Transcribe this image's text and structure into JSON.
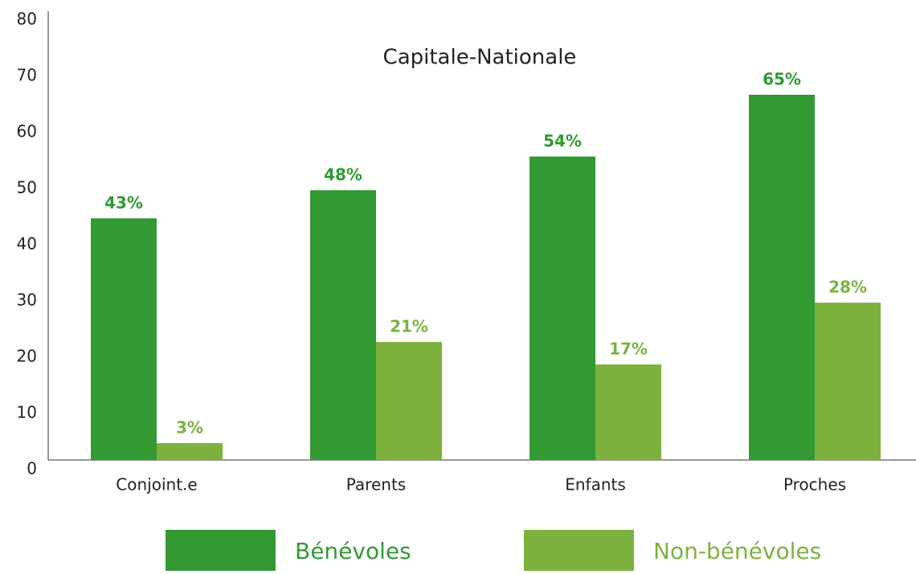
{
  "chart_data": {
    "type": "bar",
    "title": "Capitale-Nationale",
    "categories": [
      "Conjoint.e",
      "Parents",
      "Enfants",
      "Proches"
    ],
    "series": [
      {
        "name": "Bénévoles",
        "color": "#339933",
        "values": [
          43,
          48,
          54,
          65
        ],
        "value_labels": [
          "43%",
          "48%",
          "54%",
          "65%"
        ]
      },
      {
        "name": "Non-bénévoles",
        "color": "#7cb23d",
        "values": [
          3,
          21,
          17,
          28
        ],
        "value_labels": [
          "3%",
          "21%",
          "17%",
          "28%"
        ]
      }
    ],
    "ylim": [
      0,
      80
    ],
    "yticks": [
      0,
      10,
      20,
      30,
      40,
      50,
      60,
      70,
      80
    ],
    "grid": false
  }
}
